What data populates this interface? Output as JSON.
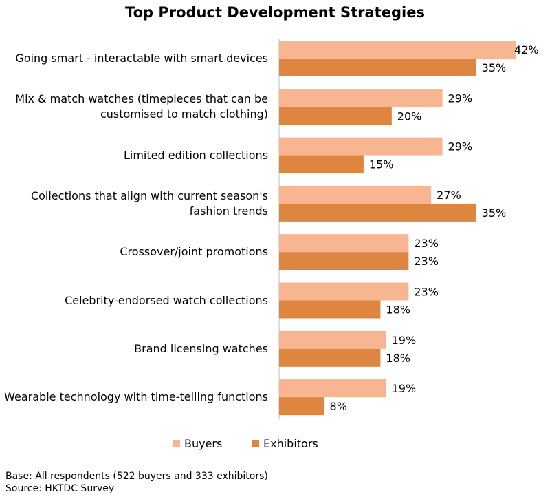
{
  "chart_data": {
    "type": "bar",
    "orientation": "horizontal",
    "title": "Top Product Development Strategies",
    "categories": [
      "Going smart - interactable with smart devices",
      "Mix & match watches (timepieces that can be customised to match clothing)",
      "Limited edition collections",
      "Collections that align with current season's fashion trends",
      "Crossover/joint promotions",
      "Celebrity-endorsed watch collections",
      "Brand licensing watches",
      "Wearable technology with time-telling functions"
    ],
    "series": [
      {
        "name": "Buyers",
        "color": "#f8b591",
        "values": [
          42,
          29,
          29,
          27,
          23,
          23,
          19,
          19
        ]
      },
      {
        "name": "Exhibitors",
        "color": "#de853f",
        "values": [
          35,
          20,
          15,
          35,
          23,
          18,
          18,
          8
        ]
      }
    ],
    "value_suffix": "%",
    "xlim": [
      0,
      42
    ],
    "grid": false,
    "legend_position": "bottom"
  },
  "footnotes": {
    "base": "Base: All respondents (522 buyers and 333 exhibitors)",
    "source": "Source: HKTDC Survey"
  }
}
